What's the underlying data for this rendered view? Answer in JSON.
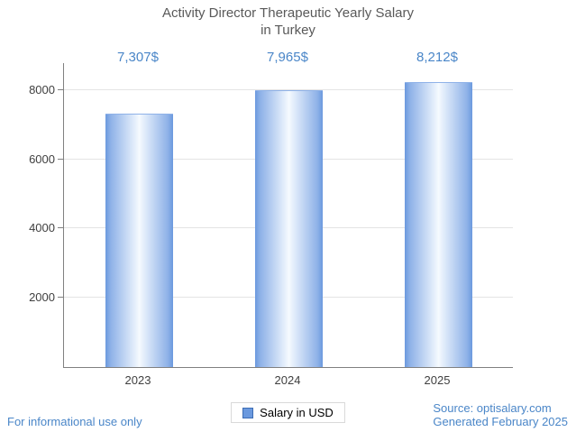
{
  "title": {
    "line1": "Activity Director Therapeutic Yearly Salary",
    "line2": "in Turkey"
  },
  "chart_data": {
    "type": "bar",
    "title": "Activity Director Therapeutic Yearly Salary in Turkey",
    "categories": [
      "2023",
      "2024",
      "2025"
    ],
    "values": [
      7307,
      7965,
      8212
    ],
    "value_labels": [
      "7,307$",
      "7,965$",
      "8,212$"
    ],
    "series_name": "Salary in USD",
    "xlabel": "",
    "ylabel": "",
    "ylim": [
      0,
      8780
    ],
    "yticks": [
      2000,
      4000,
      6000,
      8000
    ],
    "grid": true,
    "legend_position": "bottom",
    "bar_color": "#6b99de",
    "label_color": "#4a86c8"
  },
  "legend": {
    "label": "Salary in USD"
  },
  "footer": {
    "left": "For informational use only",
    "source": "Source: optisalary.com",
    "generated": "Generated February 2025"
  }
}
